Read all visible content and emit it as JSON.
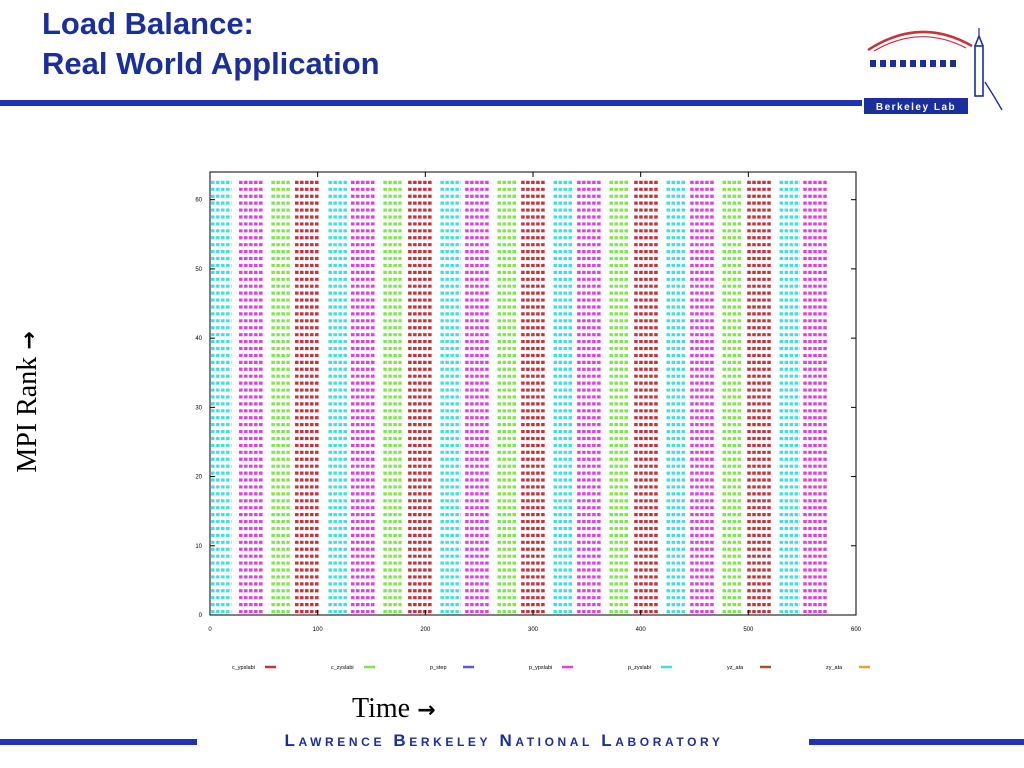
{
  "slide": {
    "title_line1": "Load Balance:",
    "title_line2": "Real World Application",
    "footer": "Lawrence Berkeley National Laboratory",
    "logo_text": "Berkeley Lab"
  },
  "axis_text": {
    "ylabel": "MPI Rank",
    "xlabel": "Time",
    "arrow": "→"
  },
  "chart_data": {
    "type": "timeline",
    "title": "",
    "xlabel": "Time",
    "ylabel": "MPI Rank",
    "xlim": [
      0,
      600
    ],
    "ylim": [
      0,
      64
    ],
    "xticks": [
      0,
      100,
      200,
      300,
      400,
      500,
      600
    ],
    "yticks": [
      0,
      10,
      20,
      30,
      40,
      50,
      60
    ],
    "ranks": 63,
    "grid": false,
    "legend_position": "bottom",
    "series": [
      {
        "name": "c_ypslabi",
        "color": "#c8323c"
      },
      {
        "name": "c_zyslabi",
        "color": "#7ee84a"
      },
      {
        "name": "p_step",
        "color": "#5a5ae0"
      },
      {
        "name": "p_ypslabi",
        "color": "#e040e0"
      },
      {
        "name": "p_zyslabi",
        "color": "#40e0e0"
      },
      {
        "name": "yz_ata",
        "color": "#a0522d"
      },
      {
        "name": "zy_ata",
        "color": "#f0a030"
      }
    ],
    "intervals": [
      {
        "series": "p_zyslabi",
        "start": 1,
        "end": 20
      },
      {
        "series": "p_ypslabi",
        "start": 27,
        "end": 50
      },
      {
        "series": "c_zyslabi",
        "start": 57,
        "end": 74
      },
      {
        "series": "c_ypslabi",
        "start": 79,
        "end": 101
      },
      {
        "series": "p_zyslabi",
        "start": 110,
        "end": 128
      },
      {
        "series": "p_ypslabi",
        "start": 131,
        "end": 153
      },
      {
        "series": "c_zyslabi",
        "start": 161,
        "end": 178
      },
      {
        "series": "c_ypslabi",
        "start": 184,
        "end": 206
      },
      {
        "series": "p_zyslabi",
        "start": 214,
        "end": 233
      },
      {
        "series": "p_ypslabi",
        "start": 237,
        "end": 260
      },
      {
        "series": "c_zyslabi",
        "start": 267,
        "end": 285
      },
      {
        "series": "c_ypslabi",
        "start": 289,
        "end": 311
      },
      {
        "series": "p_zyslabi",
        "start": 319,
        "end": 337
      },
      {
        "series": "p_ypslabi",
        "start": 341,
        "end": 364
      },
      {
        "series": "c_zyslabi",
        "start": 371,
        "end": 389
      },
      {
        "series": "c_ypslabi",
        "start": 394,
        "end": 416
      },
      {
        "series": "p_zyslabi",
        "start": 424,
        "end": 442
      },
      {
        "series": "p_ypslabi",
        "start": 446,
        "end": 469
      },
      {
        "series": "c_zyslabi",
        "start": 476,
        "end": 494
      },
      {
        "series": "c_ypslabi",
        "start": 499,
        "end": 521
      },
      {
        "series": "p_zyslabi",
        "start": 529,
        "end": 548
      },
      {
        "series": "p_ypslabi",
        "start": 551,
        "end": 574
      }
    ]
  }
}
